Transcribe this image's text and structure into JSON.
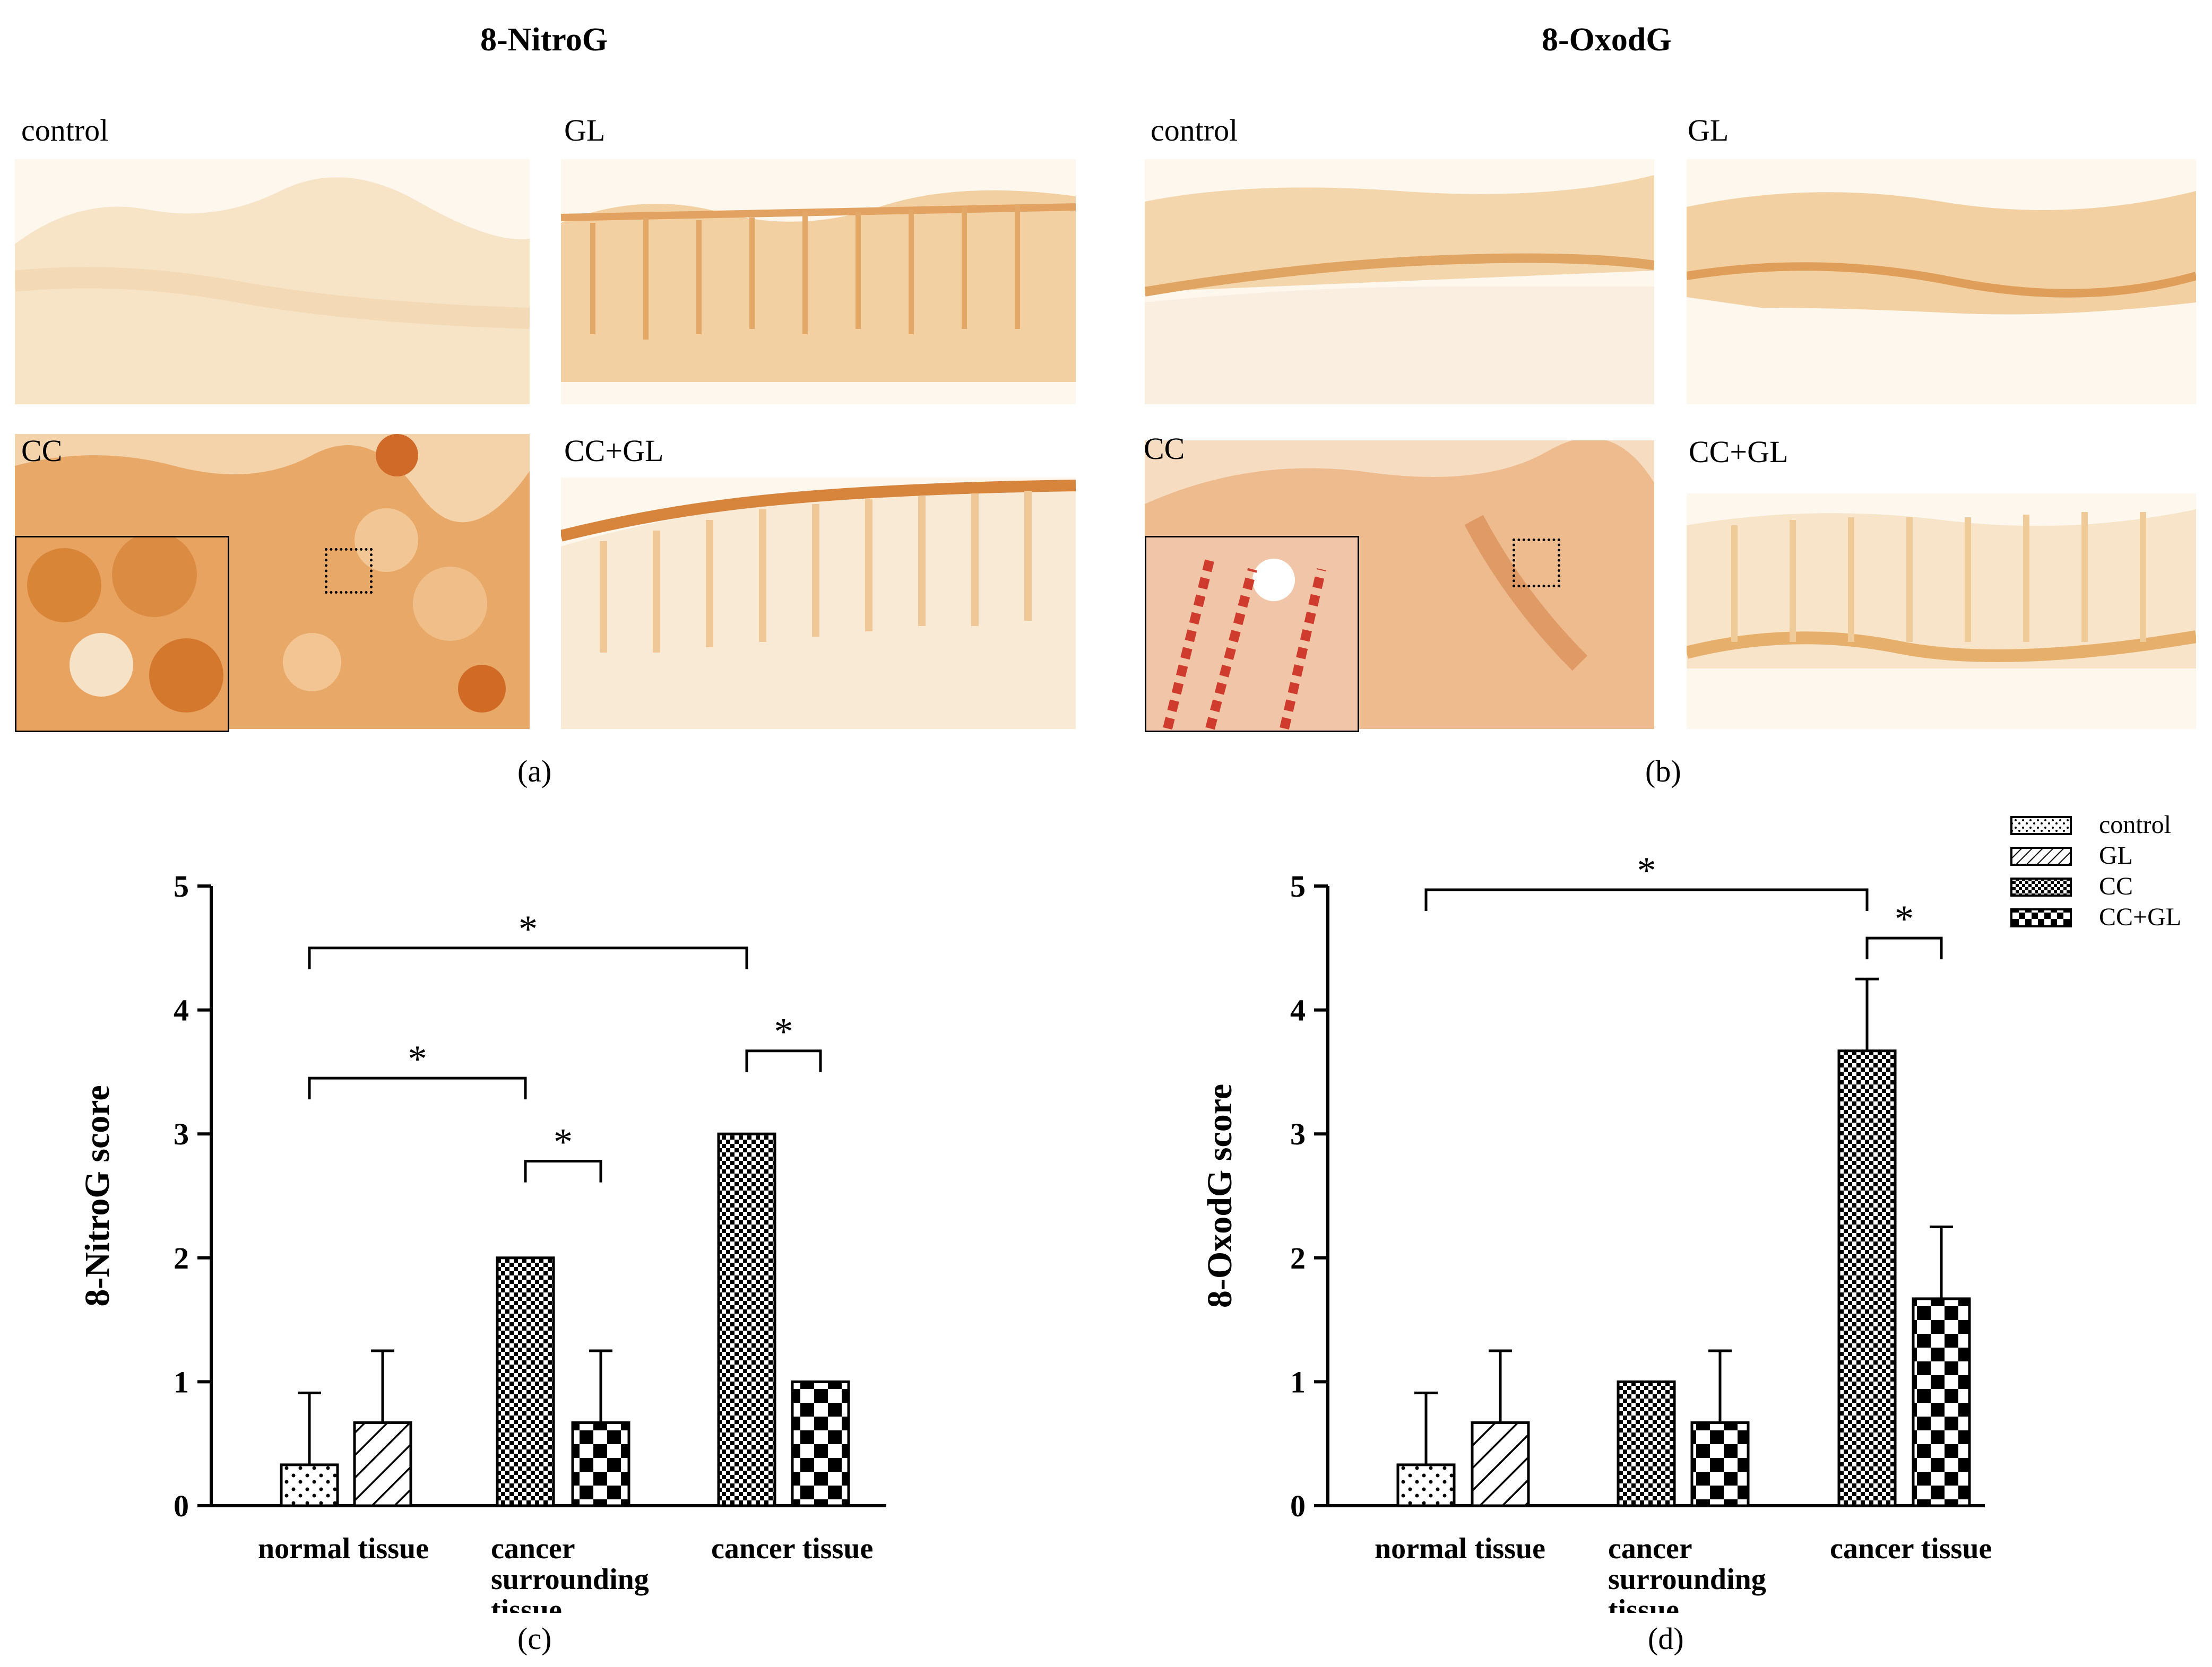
{
  "headers": {
    "left": "8-NitroG",
    "right": "8-OxodG"
  },
  "micrographs": {
    "nitro": [
      {
        "label": "control",
        "tone": "#f3d4a6"
      },
      {
        "label": "GL",
        "tone": "#e9b475"
      },
      {
        "label": "CC",
        "tone": "#d9823a"
      },
      {
        "label": "CC+GL",
        "tone": "#e6a25c"
      }
    ],
    "oxo": [
      {
        "label": "control",
        "tone": "#efc895"
      },
      {
        "label": "GL",
        "tone": "#eabd86"
      },
      {
        "label": "CC",
        "tone": "#e39a66"
      },
      {
        "label": "CC+GL",
        "tone": "#efcb98"
      }
    ]
  },
  "panel_labels": {
    "a": "(a)",
    "b": "(b)",
    "c": "(c)",
    "d": "(d)"
  },
  "legend": {
    "entries": [
      "control",
      "GL",
      "CC",
      "CC+GL"
    ]
  },
  "chart_data": [
    {
      "type": "bar",
      "title": "",
      "ylabel": "8-NitroG score",
      "xlabel": "",
      "ylim": [
        0,
        5
      ],
      "yticks": [
        "0",
        "1",
        "2",
        "3",
        "4",
        "5"
      ],
      "categories": [
        "normal tissue",
        "cancer surrounding tissue",
        "cancer tissue"
      ],
      "category_lines": [
        [
          "normal tissue"
        ],
        [
          "cancer",
          "surrounding",
          "tissue"
        ],
        [
          "cancer tissue"
        ]
      ],
      "series": [
        {
          "name": "control",
          "values": [
            0.33,
            null,
            null
          ],
          "errors": [
            0.58,
            null,
            null
          ]
        },
        {
          "name": "GL",
          "values": [
            0.67,
            null,
            null
          ],
          "errors": [
            0.58,
            null,
            null
          ]
        },
        {
          "name": "CC",
          "values": [
            null,
            2.0,
            3.0
          ],
          "errors": [
            null,
            0,
            0
          ]
        },
        {
          "name": "CC+GL",
          "values": [
            null,
            0.67,
            1.0
          ],
          "errors": [
            null,
            0.58,
            0
          ]
        }
      ],
      "significance": [
        {
          "from": [
            "normal tissue",
            "control"
          ],
          "to": [
            "cancer tissue",
            "CC"
          ],
          "y": 4.5,
          "label": "*"
        },
        {
          "from": [
            "normal tissue",
            "control"
          ],
          "to": [
            "cancer surrounding tissue",
            "CC"
          ],
          "y": 3.45,
          "label": "*"
        },
        {
          "from": [
            "cancer surrounding tissue",
            "CC"
          ],
          "to": [
            "cancer surrounding tissue",
            "CC+GL"
          ],
          "y": 2.78,
          "label": "*"
        },
        {
          "from": [
            "cancer tissue",
            "CC"
          ],
          "to": [
            "cancer tissue",
            "CC+GL"
          ],
          "y": 3.67,
          "label": "*"
        }
      ]
    },
    {
      "type": "bar",
      "title": "",
      "ylabel": "8-OxodG score",
      "xlabel": "",
      "ylim": [
        0,
        5
      ],
      "yticks": [
        "0",
        "1",
        "2",
        "3",
        "4",
        "5"
      ],
      "categories": [
        "normal tissue",
        "cancer surrounding tissue",
        "cancer tissue"
      ],
      "category_lines": [
        [
          "normal tissue"
        ],
        [
          "cancer",
          "surrounding",
          "tissue"
        ],
        [
          "cancer tissue"
        ]
      ],
      "series": [
        {
          "name": "control",
          "values": [
            0.33,
            null,
            null
          ],
          "errors": [
            0.58,
            null,
            null
          ]
        },
        {
          "name": "GL",
          "values": [
            0.67,
            null,
            null
          ],
          "errors": [
            0.58,
            null,
            null
          ]
        },
        {
          "name": "CC",
          "values": [
            null,
            1.0,
            3.67
          ],
          "errors": [
            null,
            0,
            0.58
          ]
        },
        {
          "name": "CC+GL",
          "values": [
            null,
            0.67,
            1.67
          ],
          "errors": [
            null,
            0.58,
            0.58
          ]
        }
      ],
      "significance": [
        {
          "from": [
            "normal tissue",
            "control"
          ],
          "to": [
            "cancer tissue",
            "CC"
          ],
          "y": 4.97,
          "label": "*"
        },
        {
          "from": [
            "cancer tissue",
            "CC"
          ],
          "to": [
            "cancer tissue",
            "CC+GL"
          ],
          "y": 4.58,
          "label": "*"
        }
      ]
    }
  ]
}
